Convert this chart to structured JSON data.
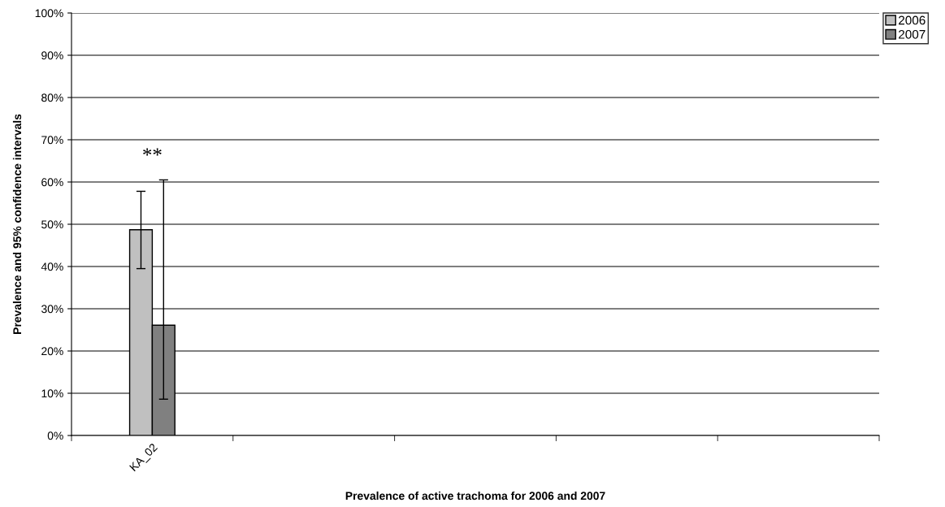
{
  "chart_data": {
    "type": "bar",
    "xlabel": "Prevalence of active trachoma for 2006 and 2007",
    "ylabel": "Prevalence and 95% confidence intervals",
    "categories": [
      "KA_02",
      null,
      null,
      null,
      null
    ],
    "series": [
      {
        "name": "2006",
        "color": "#c0c0c0",
        "values": [
          48.7,
          null,
          null,
          null,
          null
        ],
        "errors": [
          [
            39.5,
            57.8
          ],
          null,
          null,
          null,
          null
        ]
      },
      {
        "name": "2007",
        "color": "#808080",
        "values": [
          26.1,
          null,
          null,
          null,
          null
        ],
        "errors": [
          [
            8.6,
            60.5
          ],
          null,
          null,
          null,
          null
        ]
      }
    ],
    "ylim": [
      0,
      100
    ],
    "yticks": [
      {
        "value": 0,
        "label": "0%"
      },
      {
        "value": 10,
        "label": "10%"
      },
      {
        "value": 20,
        "label": "20%"
      },
      {
        "value": 30,
        "label": "30%"
      },
      {
        "value": 40,
        "label": "40%"
      },
      {
        "value": 50,
        "label": "50%"
      },
      {
        "value": 60,
        "label": "60%"
      },
      {
        "value": 70,
        "label": "70%"
      },
      {
        "value": 80,
        "label": "80%"
      },
      {
        "value": 90,
        "label": "90%"
      },
      {
        "value": 100,
        "label": "100%"
      }
    ],
    "annotations": [
      "**"
    ],
    "grid": "y",
    "legend": "top right"
  }
}
